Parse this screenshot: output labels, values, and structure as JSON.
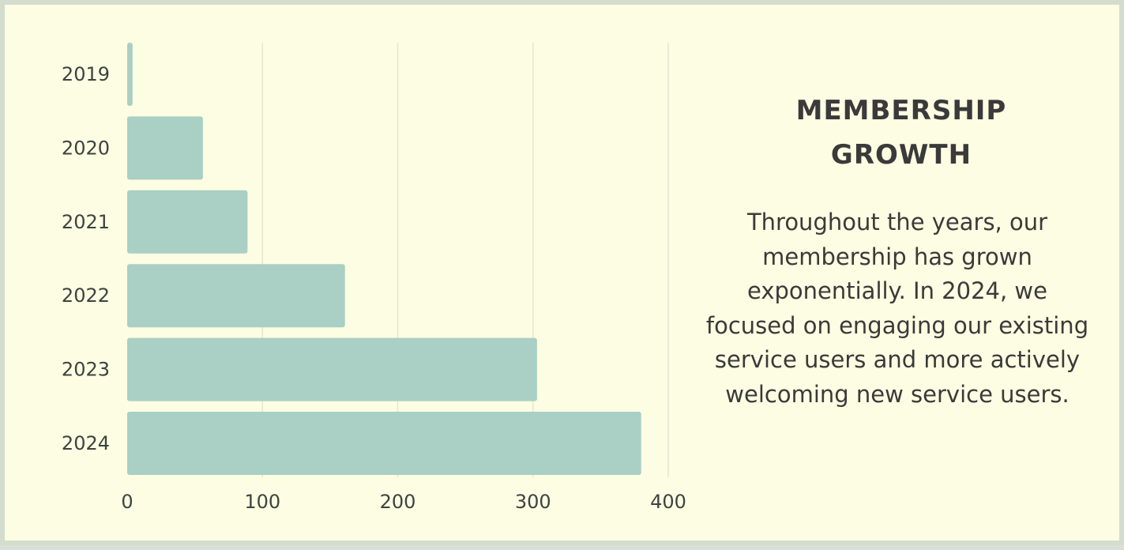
{
  "chart_data": {
    "type": "bar",
    "orientation": "horizontal",
    "categories": [
      "2019",
      "2020",
      "2021",
      "2022",
      "2023",
      "2024"
    ],
    "values": [
      4,
      56,
      89,
      161,
      303,
      380
    ],
    "xlim": [
      0,
      400
    ],
    "xticks": [
      "0",
      "100",
      "200",
      "300",
      "400"
    ],
    "grid": true,
    "bar_color": "#aacfc4",
    "grid_color": "#e3e7d2"
  },
  "panel": {
    "title_line1": "MEMBERSHIP",
    "title_line2": "GROWTH",
    "body": "Throughout the years, our membership has grown exponentially. In 2024, we focused on engaging our existing service users and more actively welcoming new service users."
  },
  "colors": {
    "background": "#fcfde2",
    "border": "#d3dccd",
    "text": "#3a3a3a"
  }
}
